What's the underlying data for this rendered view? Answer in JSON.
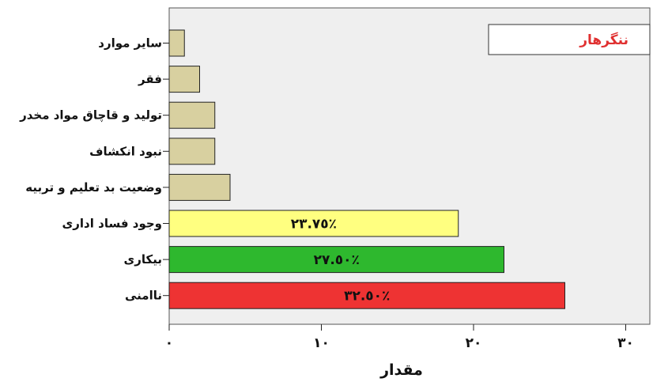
{
  "chart_data": {
    "type": "bar",
    "orientation": "horizontal",
    "categories": [
      "سایر موارد",
      "فقر",
      "تولید و قاچاق مواد مخدر",
      "نبود انکشاف",
      "وضعیت بد تعلیم و تربیه",
      "وجود فساد اداری",
      "بیکاری",
      "ناامنی"
    ],
    "values": [
      1,
      2,
      3,
      3,
      4,
      19,
      22,
      26
    ],
    "bar_colors": [
      "#d8d0a0",
      "#d8d0a0",
      "#d8d0a0",
      "#d8d0a0",
      "#d8d0a0",
      "#ffff80",
      "#2eb82e",
      "#ee3333"
    ],
    "data_labels": [
      "",
      "",
      "",
      "",
      "",
      "٢٣.٧٥٪",
      "٢٧.٥٠٪",
      "٣٢.٥٠٪"
    ],
    "xlabel": "مقدار",
    "xlim": [
      0,
      31
    ],
    "xticks": [
      0,
      10,
      20,
      30
    ],
    "xtick_labels": [
      "٠",
      "١٠",
      "٢٠",
      "٣٠"
    ],
    "legend": {
      "text": "ننگرهار",
      "color": "#e03030",
      "placement": "top-right"
    },
    "grid": false,
    "plot_background": "#efefef"
  }
}
